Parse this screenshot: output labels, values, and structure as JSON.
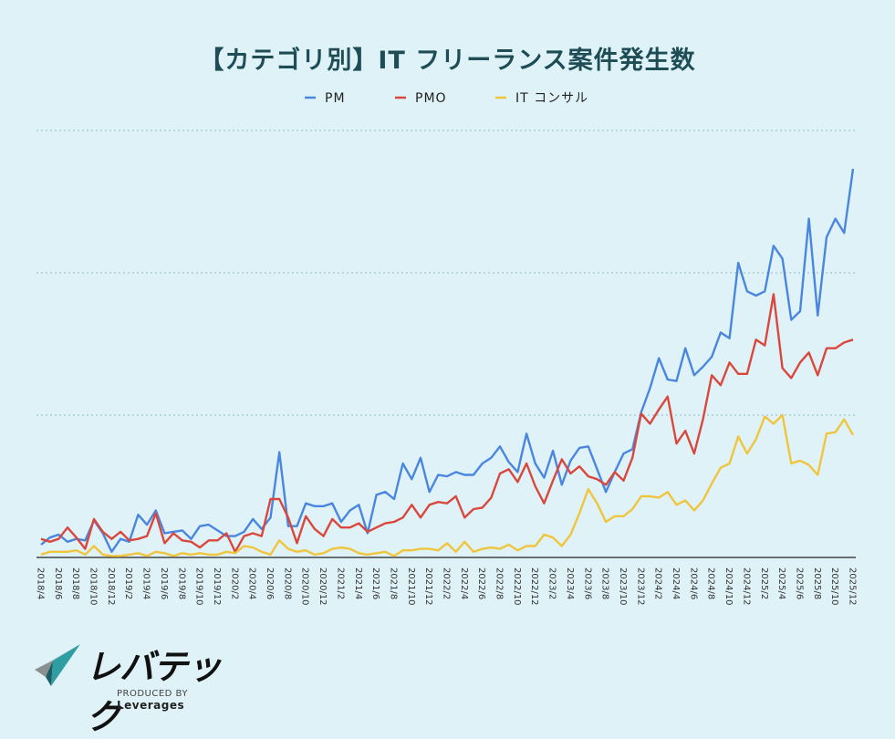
{
  "chart_data": {
    "type": "line",
    "title": "【カテゴリ別】IT フリーランス案件発生数",
    "xlabel": "",
    "ylabel": "",
    "ylim": [
      0,
      300
    ],
    "grid": true,
    "legend_position": "top-center",
    "x_start": "2018/4",
    "x_end": "2025/12",
    "tick_labels": [
      "2018/4",
      "2018/6",
      "2018/8",
      "2018/10",
      "2018/12",
      "2019/2",
      "2019/4",
      "2019/6",
      "2019/8",
      "2019/10",
      "2019/12",
      "2020/2",
      "2020/4",
      "2020/6",
      "2020/8",
      "2020/10",
      "2020/12",
      "2021/2",
      "2021/4",
      "2021/6",
      "2021/8",
      "2021/10",
      "2021/12",
      "2022/2",
      "2022/4",
      "2022/6",
      "2022/8",
      "2022/10",
      "2022/12",
      "2023/2",
      "2023/4",
      "2023/6",
      "2023/8",
      "2023/10",
      "2023/12",
      "2024/2",
      "2024/4",
      "2024/6",
      "2024/8",
      "2024/10",
      "2024/12",
      "2025/2",
      "2025/4",
      "2025/6",
      "2025/8",
      "2025/10",
      "2025/12"
    ],
    "series": [
      {
        "name": "PM",
        "color": "#4a86e0",
        "values": [
          9,
          14,
          16,
          11,
          13,
          12,
          26,
          17,
          4,
          13,
          11,
          30,
          23,
          33,
          17,
          18,
          19,
          13,
          22,
          23,
          19,
          15,
          15,
          18,
          27,
          20,
          28,
          74,
          22,
          22,
          38,
          36,
          36,
          38,
          25,
          33,
          37,
          17,
          44,
          46,
          41,
          66,
          55,
          70,
          46,
          58,
          57,
          60,
          58,
          58,
          66,
          70,
          78,
          67,
          60,
          87,
          66,
          56,
          75,
          51,
          68,
          77,
          78,
          62,
          46,
          60,
          73,
          76,
          102,
          119,
          140,
          125,
          124,
          147,
          128,
          134,
          141,
          158,
          154,
          207,
          187,
          184,
          187,
          219,
          210,
          167,
          173,
          238,
          170,
          225,
          238,
          228,
          273
        ]
      },
      {
        "name": "PMO",
        "color": "#d9473d",
        "values": [
          13,
          11,
          13,
          21,
          14,
          6,
          27,
          18,
          13,
          18,
          12,
          13,
          15,
          31,
          10,
          17,
          12,
          11,
          7,
          12,
          12,
          17,
          4,
          15,
          17,
          15,
          41,
          41,
          28,
          10,
          29,
          20,
          15,
          27,
          21,
          21,
          24,
          18,
          21,
          24,
          25,
          28,
          37,
          28,
          37,
          39,
          38,
          43,
          28,
          34,
          35,
          42,
          59,
          62,
          53,
          66,
          50,
          38,
          54,
          69,
          59,
          64,
          57,
          55,
          51,
          60,
          54,
          70,
          101,
          94,
          104,
          113,
          80,
          89,
          73,
          97,
          128,
          121,
          137,
          129,
          129,
          153,
          149,
          185,
          133,
          126,
          137,
          144,
          128,
          147,
          147,
          151,
          153
        ]
      },
      {
        "name": "IT コンサル",
        "color": "#f0c53c",
        "values": [
          2,
          4,
          4,
          4,
          5,
          2,
          8,
          2,
          1,
          1,
          2,
          3,
          1,
          4,
          3,
          1,
          3,
          2,
          3,
          2,
          2,
          4,
          3,
          8,
          7,
          4,
          2,
          12,
          6,
          4,
          5,
          2,
          3,
          6,
          7,
          6,
          3,
          2,
          3,
          4,
          1,
          5,
          5,
          6,
          6,
          5,
          10,
          4,
          11,
          4,
          6,
          7,
          6,
          9,
          5,
          8,
          8,
          16,
          14,
          8,
          16,
          31,
          48,
          38,
          25,
          29,
          29,
          34,
          43,
          43,
          42,
          46,
          37,
          40,
          33,
          40,
          52,
          63,
          66,
          85,
          73,
          83,
          99,
          94,
          100,
          66,
          68,
          65,
          58,
          87,
          88,
          97,
          86
        ]
      }
    ]
  },
  "logo": {
    "name": "レバテック",
    "produced_by": "PRODUCED BY",
    "company": "Leverages"
  }
}
